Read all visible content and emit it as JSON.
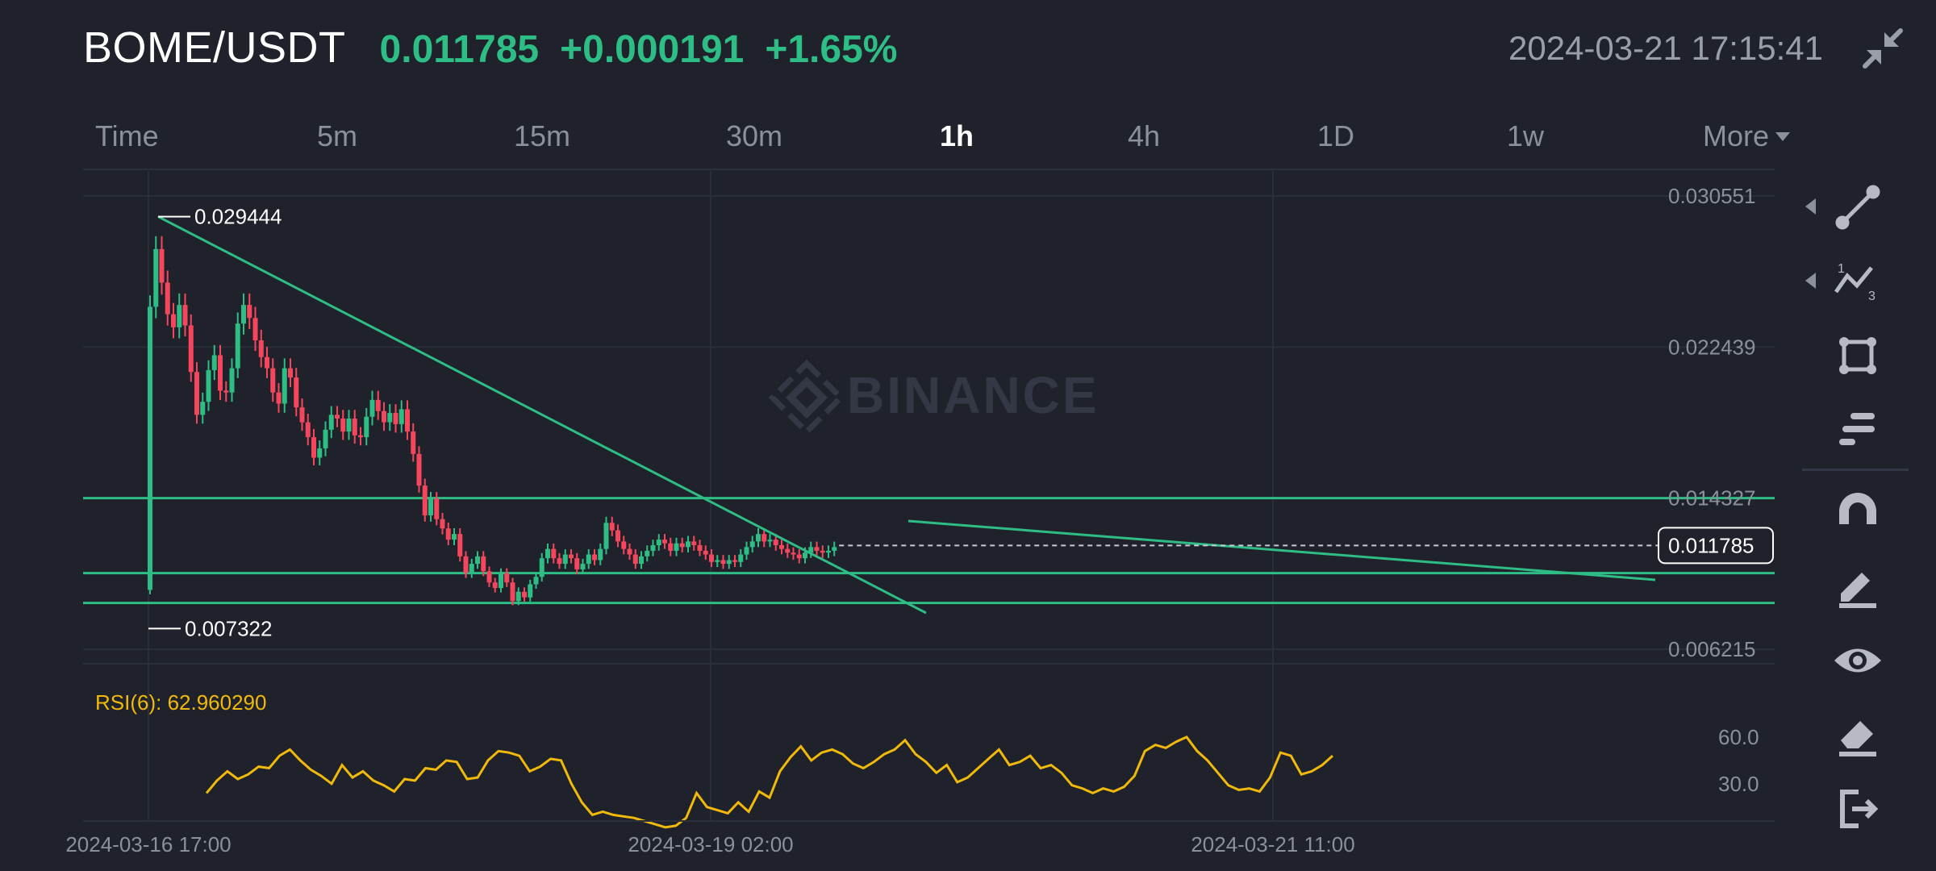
{
  "header": {
    "pair": "BOME/USDT",
    "last_price": "0.011785",
    "change_abs": "+0.000191",
    "change_pct": "+1.65%",
    "datetime": "2024-03-21 17:15:41",
    "collapse_icon": "collapse-arrows-icon"
  },
  "tabs": [
    {
      "label": "Time",
      "active": false
    },
    {
      "label": "5m",
      "active": false
    },
    {
      "label": "15m",
      "active": false
    },
    {
      "label": "30m",
      "active": false
    },
    {
      "label": "1h",
      "active": true
    },
    {
      "label": "4h",
      "active": false
    },
    {
      "label": "1D",
      "active": false
    },
    {
      "label": "1w",
      "active": false
    },
    {
      "label": "More",
      "active": false
    }
  ],
  "watermark": "BINANCE",
  "toolbar": [
    {
      "icon": "trend-line-icon",
      "has_submenu": true
    },
    {
      "icon": "fibonacci-wave-icon",
      "has_submenu": true
    },
    {
      "icon": "rectangle-icon",
      "has_submenu": false
    },
    {
      "icon": "text-lines-icon",
      "has_submenu": false
    },
    {
      "icon": "magnet-icon",
      "has_submenu": false
    },
    {
      "icon": "pencil-lock-icon",
      "has_submenu": false
    },
    {
      "icon": "eye-icon",
      "has_submenu": false
    },
    {
      "icon": "eraser-icon",
      "has_submenu": false
    },
    {
      "icon": "exit-icon",
      "has_submenu": false
    }
  ],
  "colors": {
    "background": "#1f222b",
    "up": "#2ebd85",
    "down": "#f6465d",
    "rsi": "#f0b90b",
    "drawing": "#2ebd85"
  },
  "chart_data": {
    "type": "candlestick",
    "interval": "1h",
    "y_axis_ticks": [
      "0.030551",
      "0.022439",
      "0.014327",
      "0.006215"
    ],
    "ylim": [
      0.006215,
      0.030551
    ],
    "x_axis_ticks": [
      "2024-03-16 17:00",
      "2024-03-19 02:00",
      "2024-03-21 11:00"
    ],
    "current_price_label": "0.011785",
    "high_marker": "0.029444",
    "low_marker": "0.007322",
    "horizontal_lines": [
      0.014327,
      0.0103,
      0.0087
    ],
    "trend_lines": [
      {
        "from": [
          "2024-03-16 17:00",
          0.029444
        ],
        "to": [
          "2024-03-19 11:00",
          0.0086
        ]
      },
      {
        "from": [
          "2024-03-19 20:00",
          0.0134
        ],
        "to": [
          "2024-03-22 00:00",
          0.0104
        ]
      }
    ],
    "candles": [
      [
        0.0094,
        0.0246
      ],
      [
        0.0246,
        0.0277
      ],
      [
        0.0277,
        0.0259
      ],
      [
        0.0259,
        0.0242
      ],
      [
        0.0242,
        0.0235
      ],
      [
        0.0235,
        0.0247
      ],
      [
        0.0247,
        0.0236
      ],
      [
        0.0236,
        0.0211
      ],
      [
        0.0211,
        0.0188
      ],
      [
        0.0188,
        0.0195
      ],
      [
        0.0195,
        0.0212
      ],
      [
        0.0212,
        0.022
      ],
      [
        0.022,
        0.0201
      ],
      [
        0.0201,
        0.02
      ],
      [
        0.02,
        0.0213
      ],
      [
        0.0213,
        0.0237
      ],
      [
        0.0237,
        0.0247
      ],
      [
        0.0247,
        0.024
      ],
      [
        0.024,
        0.0228
      ],
      [
        0.0228,
        0.0219
      ],
      [
        0.0219,
        0.0213
      ],
      [
        0.0213,
        0.02
      ],
      [
        0.02,
        0.0194
      ],
      [
        0.0194,
        0.0213
      ],
      [
        0.0213,
        0.0208
      ],
      [
        0.0208,
        0.0192
      ],
      [
        0.0192,
        0.0184
      ],
      [
        0.0184,
        0.0176
      ],
      [
        0.0176,
        0.0165
      ],
      [
        0.0165,
        0.017
      ],
      [
        0.017,
        0.018
      ],
      [
        0.018,
        0.0188
      ],
      [
        0.0188,
        0.0186
      ],
      [
        0.0186,
        0.0179
      ],
      [
        0.0179,
        0.0186
      ],
      [
        0.0186,
        0.0177
      ],
      [
        0.0177,
        0.0176
      ],
      [
        0.0176,
        0.0187
      ],
      [
        0.0187,
        0.0196
      ],
      [
        0.0196,
        0.019
      ],
      [
        0.019,
        0.0184
      ],
      [
        0.0184,
        0.0189
      ],
      [
        0.0189,
        0.0183
      ],
      [
        0.0183,
        0.0191
      ],
      [
        0.0191,
        0.0179
      ],
      [
        0.0179,
        0.0167
      ],
      [
        0.0167,
        0.015
      ],
      [
        0.015,
        0.0134
      ],
      [
        0.0134,
        0.0143
      ],
      [
        0.0143,
        0.0132
      ],
      [
        0.0132,
        0.0127
      ],
      [
        0.0127,
        0.0121
      ],
      [
        0.0121,
        0.0124
      ],
      [
        0.0124,
        0.0112
      ],
      [
        0.0112,
        0.0103
      ],
      [
        0.0103,
        0.0108
      ],
      [
        0.0108,
        0.0112
      ],
      [
        0.0112,
        0.0104
      ],
      [
        0.0104,
        0.0098
      ],
      [
        0.0098,
        0.0095
      ],
      [
        0.0095,
        0.0103
      ],
      [
        0.0103,
        0.0098
      ],
      [
        0.0098,
        0.0088
      ],
      [
        0.0088,
        0.0093
      ],
      [
        0.0093,
        0.009
      ],
      [
        0.009,
        0.0097
      ],
      [
        0.0097,
        0.0101
      ],
      [
        0.0101,
        0.0111
      ],
      [
        0.0111,
        0.0116
      ],
      [
        0.0116,
        0.0111
      ],
      [
        0.0111,
        0.0108
      ],
      [
        0.0108,
        0.0113
      ],
      [
        0.0113,
        0.0111
      ],
      [
        0.0111,
        0.0105
      ],
      [
        0.0105,
        0.0108
      ],
      [
        0.0108,
        0.0113
      ],
      [
        0.0113,
        0.011
      ],
      [
        0.011,
        0.0116
      ],
      [
        0.0116,
        0.013
      ],
      [
        0.013,
        0.0126
      ],
      [
        0.0126,
        0.012
      ],
      [
        0.012,
        0.0116
      ],
      [
        0.0116,
        0.0113
      ],
      [
        0.0113,
        0.0108
      ],
      [
        0.0108,
        0.0112
      ],
      [
        0.0112,
        0.0115
      ],
      [
        0.0115,
        0.0118
      ],
      [
        0.0118,
        0.0121
      ],
      [
        0.0121,
        0.0119
      ],
      [
        0.0119,
        0.0115
      ],
      [
        0.0115,
        0.0119
      ],
      [
        0.0119,
        0.0117
      ],
      [
        0.0117,
        0.012
      ],
      [
        0.012,
        0.0118
      ],
      [
        0.0118,
        0.0115
      ],
      [
        0.0115,
        0.0113
      ],
      [
        0.0113,
        0.0109
      ],
      [
        0.0109,
        0.011
      ],
      [
        0.011,
        0.0108
      ],
      [
        0.0108,
        0.011
      ],
      [
        0.011,
        0.0109
      ],
      [
        0.0109,
        0.0113
      ],
      [
        0.0113,
        0.0117
      ],
      [
        0.0117,
        0.012
      ],
      [
        0.012,
        0.0124
      ],
      [
        0.0124,
        0.012
      ],
      [
        0.012,
        0.0121
      ],
      [
        0.0121,
        0.0118
      ],
      [
        0.0118,
        0.0116
      ],
      [
        0.0116,
        0.0114
      ],
      [
        0.0114,
        0.0113
      ],
      [
        0.0113,
        0.0111
      ],
      [
        0.0111,
        0.0114
      ],
      [
        0.0114,
        0.0117
      ],
      [
        0.0117,
        0.0115
      ],
      [
        0.0115,
        0.0114
      ],
      [
        0.0114,
        0.0115
      ],
      [
        0.0115,
        0.0117
      ]
    ],
    "rsi": {
      "label": "RSI(6): 62.960290",
      "ticks": [
        "60.0",
        "30.0"
      ],
      "ylim": [
        5,
        75
      ],
      "values": [
        24,
        32,
        38,
        33,
        36,
        41,
        40,
        48,
        52,
        45,
        39,
        35,
        30,
        42,
        34,
        38,
        32,
        29,
        25,
        33,
        32,
        40,
        39,
        45,
        44,
        33,
        34,
        45,
        51,
        50,
        48,
        38,
        41,
        46,
        45,
        30,
        18,
        10,
        12,
        10,
        9,
        8,
        6,
        4,
        2,
        3,
        8,
        24,
        15,
        13,
        11,
        18,
        12,
        25,
        21,
        38,
        47,
        54,
        45,
        50,
        52,
        49,
        43,
        40,
        44,
        49,
        52,
        58,
        49,
        44,
        37,
        42,
        31,
        34,
        40,
        46,
        52,
        42,
        44,
        48,
        40,
        42,
        37,
        29,
        27,
        24,
        27,
        25,
        28,
        35,
        51,
        55,
        53,
        57,
        60,
        51,
        45,
        37,
        29,
        26,
        27,
        25,
        34,
        50,
        48,
        36,
        38,
        42,
        48
      ]
    }
  }
}
